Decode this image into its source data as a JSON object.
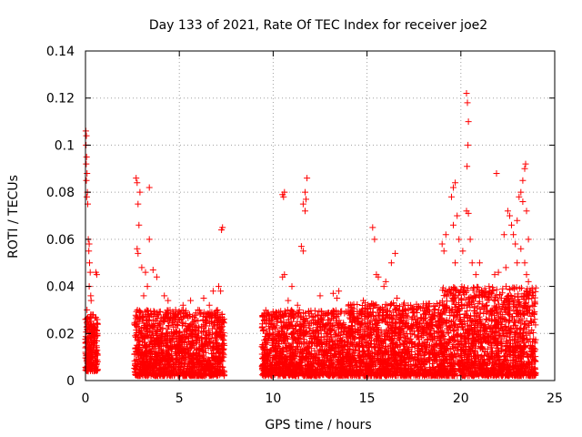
{
  "chart_data": {
    "type": "scatter",
    "title": "Day 133 of 2021, Rate Of TEC Index for receiver joe2",
    "xlabel": "GPS time / hours",
    "ylabel": "ROTI / TECUs",
    "xlim": [
      0,
      25
    ],
    "ylim": [
      0,
      0.14
    ],
    "xticks": [
      0,
      5,
      10,
      15,
      20,
      25
    ],
    "yticks": [
      0,
      0.02,
      0.04,
      0.06,
      0.08,
      0.1,
      0.12,
      0.14
    ],
    "xtick_labels": [
      "0",
      "5",
      "10",
      "15",
      "20",
      "25"
    ],
    "ytick_labels": [
      "0",
      "0.02",
      "0.04",
      "0.06",
      "0.08",
      "0.1",
      "0.12",
      "0.14"
    ],
    "grid": true,
    "marker": "+",
    "series": [
      {
        "color": "#ff0000",
        "points": [
          [
            0.02,
            0.106
          ],
          [
            0.05,
            0.104
          ],
          [
            0.03,
            0.1
          ],
          [
            0.06,
            0.095
          ],
          [
            0.04,
            0.092
          ],
          [
            0.08,
            0.088
          ],
          [
            0.05,
            0.085
          ],
          [
            0.1,
            0.08
          ],
          [
            0.07,
            0.078
          ],
          [
            0.12,
            0.075
          ],
          [
            0.15,
            0.06
          ],
          [
            0.2,
            0.058
          ],
          [
            0.18,
            0.055
          ],
          [
            0.22,
            0.05
          ],
          [
            0.25,
            0.046
          ],
          [
            0.2,
            0.04
          ],
          [
            0.28,
            0.036
          ],
          [
            0.3,
            0.034
          ],
          [
            0.55,
            0.046
          ],
          [
            0.6,
            0.045
          ],
          [
            0.0,
            0.026
          ],
          [
            0.1,
            0.024
          ],
          [
            0.2,
            0.022
          ],
          [
            0.3,
            0.02
          ],
          [
            0.4,
            0.018
          ],
          [
            0.5,
            0.016
          ],
          [
            0.6,
            0.014
          ],
          [
            0.05,
            0.012
          ],
          [
            0.15,
            0.01
          ],
          [
            0.25,
            0.008
          ],
          [
            0.35,
            0.006
          ],
          [
            0.45,
            0.005
          ],
          [
            0.55,
            0.008
          ],
          [
            0.12,
            0.018
          ],
          [
            0.32,
            0.015
          ],
          [
            0.42,
            0.022
          ],
          [
            0.52,
            0.012
          ],
          [
            0.62,
            0.02
          ],
          [
            0.08,
            0.03
          ],
          [
            0.28,
            0.028
          ],
          [
            2.7,
            0.086
          ],
          [
            2.75,
            0.084
          ],
          [
            2.9,
            0.08
          ],
          [
            2.8,
            0.075
          ],
          [
            2.85,
            0.066
          ],
          [
            2.75,
            0.056
          ],
          [
            2.8,
            0.054
          ],
          [
            3.4,
            0.082
          ],
          [
            3.4,
            0.06
          ],
          [
            3.0,
            0.048
          ],
          [
            3.2,
            0.046
          ],
          [
            3.6,
            0.047
          ],
          [
            3.8,
            0.044
          ],
          [
            3.3,
            0.04
          ],
          [
            4.2,
            0.036
          ],
          [
            4.4,
            0.034
          ],
          [
            3.1,
            0.036
          ],
          [
            5.6,
            0.034
          ],
          [
            6.3,
            0.035
          ],
          [
            6.8,
            0.038
          ],
          [
            7.1,
            0.04
          ],
          [
            7.2,
            0.038
          ],
          [
            7.3,
            0.065
          ],
          [
            7.25,
            0.064
          ],
          [
            5.2,
            0.032
          ],
          [
            4.8,
            0.03
          ],
          [
            6.0,
            0.03
          ],
          [
            6.6,
            0.032
          ],
          [
            9.5,
            0.014
          ],
          [
            9.6,
            0.01
          ],
          [
            9.7,
            0.006
          ],
          [
            9.8,
            0.012
          ],
          [
            10.0,
            0.015
          ],
          [
            10.3,
            0.02
          ],
          [
            10.5,
            0.079
          ],
          [
            10.6,
            0.08
          ],
          [
            10.55,
            0.078
          ],
          [
            10.6,
            0.045
          ],
          [
            10.5,
            0.044
          ],
          [
            10.8,
            0.034
          ],
          [
            11.0,
            0.04
          ],
          [
            11.3,
            0.032
          ],
          [
            11.4,
            0.03
          ],
          [
            11.5,
            0.057
          ],
          [
            11.6,
            0.055
          ],
          [
            11.7,
            0.08
          ],
          [
            11.75,
            0.077
          ],
          [
            11.8,
            0.086
          ],
          [
            11.6,
            0.075
          ],
          [
            11.7,
            0.072
          ],
          [
            12.5,
            0.036
          ],
          [
            13.2,
            0.037
          ],
          [
            13.5,
            0.038
          ],
          [
            13.4,
            0.035
          ],
          [
            14.2,
            0.032
          ],
          [
            14.8,
            0.034
          ],
          [
            15.3,
            0.065
          ],
          [
            15.4,
            0.06
          ],
          [
            15.5,
            0.045
          ],
          [
            15.6,
            0.044
          ],
          [
            16.3,
            0.05
          ],
          [
            16.5,
            0.054
          ],
          [
            16.0,
            0.042
          ],
          [
            15.9,
            0.04
          ],
          [
            16.6,
            0.035
          ],
          [
            17.5,
            0.03
          ],
          [
            18.0,
            0.026
          ],
          [
            18.5,
            0.028
          ],
          [
            19.0,
            0.058
          ],
          [
            19.1,
            0.055
          ],
          [
            19.2,
            0.062
          ],
          [
            19.5,
            0.078
          ],
          [
            19.6,
            0.082
          ],
          [
            19.7,
            0.084
          ],
          [
            19.8,
            0.07
          ],
          [
            19.6,
            0.066
          ],
          [
            19.9,
            0.06
          ],
          [
            19.7,
            0.05
          ],
          [
            20.3,
            0.122
          ],
          [
            20.35,
            0.118
          ],
          [
            20.4,
            0.11
          ],
          [
            20.38,
            0.1
          ],
          [
            20.33,
            0.091
          ],
          [
            20.3,
            0.072
          ],
          [
            20.4,
            0.071
          ],
          [
            20.5,
            0.06
          ],
          [
            20.1,
            0.055
          ],
          [
            20.6,
            0.05
          ],
          [
            20.8,
            0.045
          ],
          [
            21.0,
            0.05
          ],
          [
            21.5,
            0.04
          ],
          [
            21.8,
            0.045
          ],
          [
            21.9,
            0.088
          ],
          [
            22.5,
            0.072
          ],
          [
            22.6,
            0.07
          ],
          [
            22.3,
            0.062
          ],
          [
            22.7,
            0.066
          ],
          [
            22.8,
            0.062
          ],
          [
            22.9,
            0.058
          ],
          [
            23.0,
            0.068
          ],
          [
            23.1,
            0.078
          ],
          [
            23.2,
            0.08
          ],
          [
            23.3,
            0.085
          ],
          [
            23.4,
            0.09
          ],
          [
            23.45,
            0.092
          ],
          [
            23.3,
            0.076
          ],
          [
            23.5,
            0.072
          ],
          [
            23.6,
            0.06
          ],
          [
            23.2,
            0.056
          ],
          [
            23.0,
            0.05
          ],
          [
            23.4,
            0.05
          ],
          [
            23.5,
            0.045
          ],
          [
            23.7,
            0.038
          ],
          [
            23.8,
            0.032
          ],
          [
            23.9,
            0.028
          ],
          [
            23.6,
            0.042
          ],
          [
            22.4,
            0.048
          ],
          [
            22.0,
            0.046
          ]
        ]
      }
    ],
    "dense_bands": [
      {
        "x_range": [
          0.0,
          0.65
        ],
        "y_range": [
          0.004,
          0.028
        ],
        "count": 220
      },
      {
        "x_range": [
          2.6,
          7.4
        ],
        "y_range": [
          0.002,
          0.03
        ],
        "count": 1400
      },
      {
        "x_range": [
          9.4,
          14.0
        ],
        "y_range": [
          0.002,
          0.03
        ],
        "count": 1300
      },
      {
        "x_range": [
          14.0,
          19.0
        ],
        "y_range": [
          0.002,
          0.033
        ],
        "count": 1400
      },
      {
        "x_range": [
          19.0,
          24.0
        ],
        "y_range": [
          0.002,
          0.04
        ],
        "count": 1500
      }
    ]
  }
}
